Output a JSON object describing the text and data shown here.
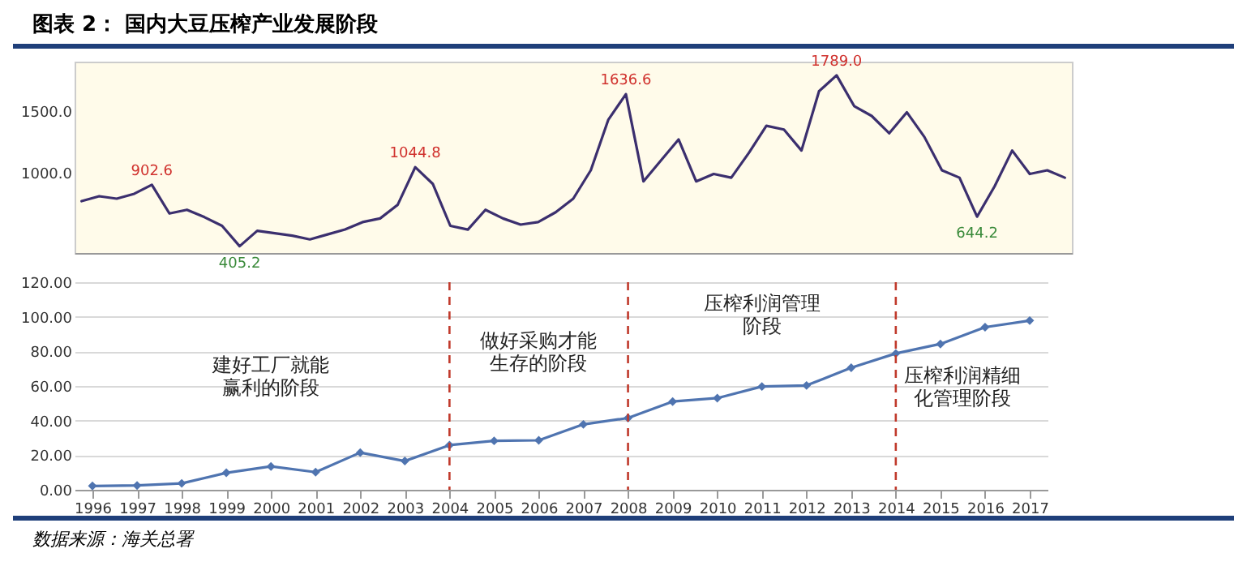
{
  "chart_data": [
    {
      "type": "line",
      "title": "图表 2：  国内大豆压榨产业发展阶段",
      "categories": [
        null,
        null,
        null,
        null,
        null,
        null,
        null,
        null,
        null,
        null,
        null,
        null,
        null,
        null,
        null,
        null,
        null,
        null,
        null,
        null,
        null,
        null,
        null,
        null,
        null,
        null,
        null,
        null,
        null,
        null,
        null,
        null,
        null,
        null,
        null,
        null,
        null,
        null,
        null,
        null,
        null,
        null,
        null,
        null,
        null,
        null,
        null,
        null,
        null,
        null,
        null,
        null,
        null,
        null,
        null,
        null,
        null
      ],
      "series": [
        {
          "color": "#3b2f6e",
          "values": [
            770,
            810,
            790,
            830,
            902.6,
            670,
            700,
            640,
            570,
            405.2,
            530,
            510,
            490,
            460,
            500,
            540,
            600,
            630,
            740,
            1044.8,
            910,
            570,
            540,
            700,
            630,
            580,
            600,
            680,
            790,
            1020,
            1430,
            1636.6,
            930,
            1100,
            1270,
            930,
            990,
            960,
            1160,
            1380,
            1350,
            1180,
            1660,
            1789.0,
            1540,
            1460,
            1320,
            1490,
            1290,
            1020,
            960,
            644.2,
            890,
            1180,
            990,
            1020,
            960
          ]
        }
      ],
      "ylim": [
        350,
        1900
      ],
      "yticks": [
        {
          "value": 1000,
          "label": "1000.0"
        },
        {
          "value": 1500,
          "label": "1500.0"
        }
      ],
      "tick_labels": "y",
      "annotations": [
        {
          "text": "902.6",
          "y": 902.6
        },
        {
          "text": "405.2",
          "y": 405.2
        },
        {
          "text": "1044.8",
          "y": 1044.8
        },
        {
          "text": "1636.6",
          "y": 1636.6
        },
        {
          "text": "1789.0",
          "y": 1789.0
        },
        {
          "text": "644.2",
          "y": 644.2
        }
      ]
    },
    {
      "type": "line",
      "categories": [
        "1996",
        "1997",
        "1998",
        "1999",
        "2000",
        "2001",
        "2002",
        "2003",
        "2004",
        "2005",
        "2006",
        "2007",
        "2008",
        "2009",
        "2010",
        "2011",
        "2012",
        "2013",
        "2014",
        "2015",
        "2016",
        "2017"
      ],
      "series": [
        {
          "color": "#4f74b0",
          "values": [
            2.2,
            2.5,
            3.7,
            9.8,
            13.5,
            10.2,
            21.5,
            16.6,
            25.8,
            28.3,
            28.6,
            37.8,
            41.5,
            51,
            53,
            59.7,
            60.3,
            70.5,
            78.8,
            84.3,
            94,
            97.8
          ]
        }
      ],
      "marker": "diamond",
      "ylim": [
        0,
        120
      ],
      "yticks": [
        {
          "value": 0,
          "label": "0.00"
        },
        {
          "value": 20,
          "label": "20.00"
        },
        {
          "value": 40,
          "label": "40.00"
        },
        {
          "value": 60,
          "label": "60.00"
        },
        {
          "value": 80,
          "label": "80.00"
        },
        {
          "value": 100,
          "label": "100.00"
        },
        {
          "value": 120,
          "label": "120.00"
        }
      ],
      "grid": "y",
      "ref_lines": [
        {
          "axis": "x",
          "value": "2004",
          "color": "#c0392b",
          "line_style": "dashed"
        },
        {
          "axis": "x",
          "value": "2008",
          "color": "#c0392b",
          "line_style": "dashed"
        },
        {
          "axis": "x",
          "value": "2014",
          "color": "#c0392b",
          "line_style": "dashed"
        }
      ],
      "annotations": [
        "建好工厂就能赢利的阶段",
        "做好采购才能生存的阶段",
        "压榨利润管理阶段",
        "压榨利润精细化管理阶段",
        "数据来源：海关总署"
      ]
    }
  ]
}
